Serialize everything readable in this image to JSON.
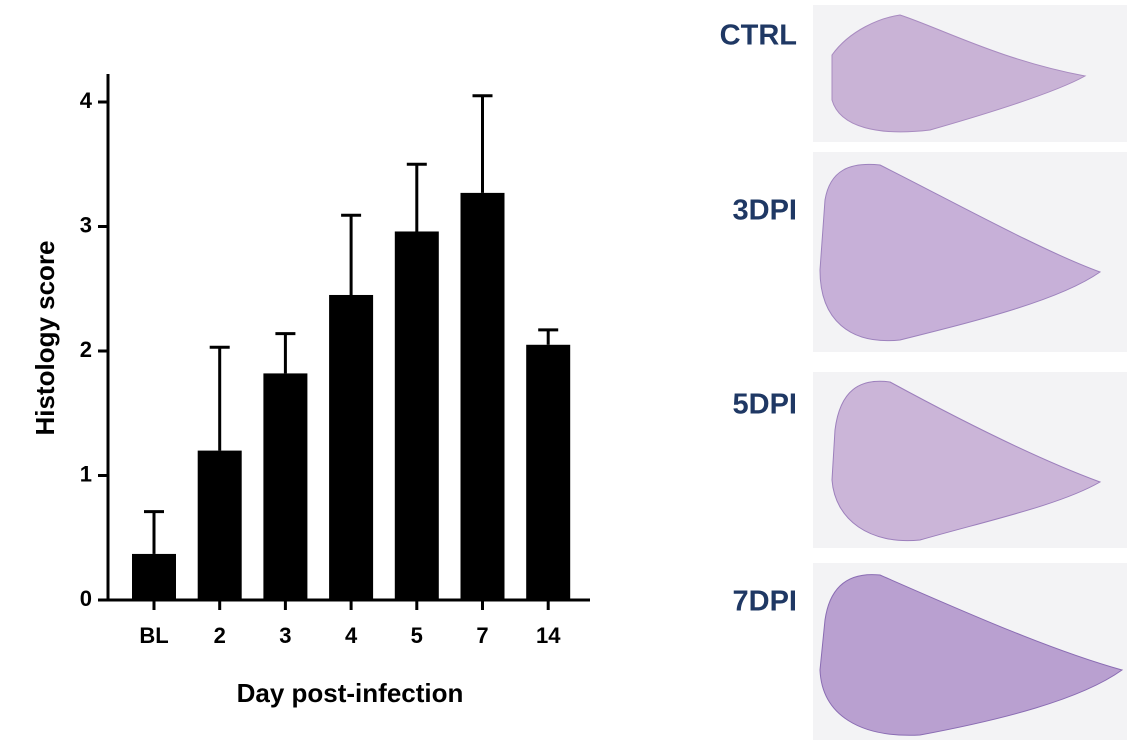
{
  "chart_data": {
    "type": "bar",
    "y_label": "Histology score",
    "x_label": "Day post-infection",
    "categories": [
      "BL",
      "2",
      "3",
      "4",
      "5",
      "7",
      "14"
    ],
    "values": [
      0.37,
      1.2,
      1.82,
      2.45,
      2.96,
      3.27,
      2.05
    ],
    "errors": [
      0.34,
      0.83,
      0.32,
      0.64,
      0.54,
      0.78,
      0.12
    ],
    "color": "#000000",
    "ylim": [
      0,
      4
    ],
    "yticks": [
      0,
      1,
      2,
      3,
      4
    ],
    "grid": false
  },
  "image_panels": [
    "CTRL",
    "3DPI",
    "5DPI",
    "7DPI"
  ]
}
